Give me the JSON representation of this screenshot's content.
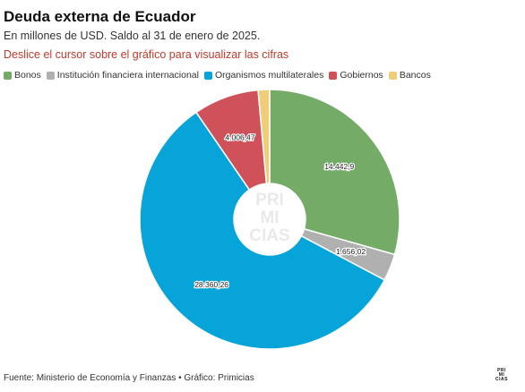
{
  "header": {
    "title": "Deuda externa de Ecuador",
    "subtitle": "En millones de USD. Saldo al 31 de enero de 2025.",
    "instruction": "Deslice el cursor sobre el gráfico para visualizar las cifras"
  },
  "chart_data": {
    "type": "pie",
    "variant": "donut",
    "legend_position": "top-left",
    "categories": [
      "Bonos",
      "Institución financiera internacional",
      "Organismos multilaterales",
      "Gobiernos",
      "Bancos"
    ],
    "values": [
      14442.9,
      1656.02,
      28360.26,
      4006.47,
      700
    ],
    "data_labels": [
      "14.442,9",
      "1.656,02",
      "28.360,26",
      "4.006,47",
      ""
    ],
    "colors": [
      "#73ab67",
      "#b0b0b0",
      "#06a4d8",
      "#cf5159",
      "#f0cd79"
    ]
  },
  "watermark": [
    "PRI",
    "MI",
    "CIAS"
  ],
  "footer": {
    "source": "Fuente: Ministerio de Economía y Finanzas • Gráfico: Primicias"
  },
  "logo": [
    "PRI",
    "MI",
    "CIAS"
  ]
}
